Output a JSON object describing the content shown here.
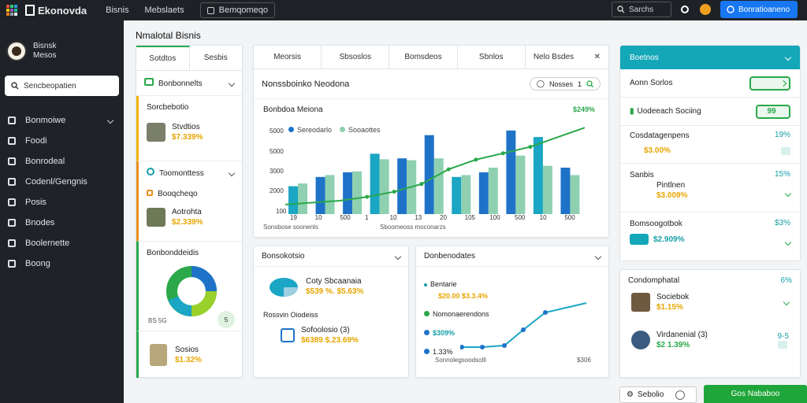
{
  "topbar": {
    "brand": "Ekonovda",
    "nav": [
      "Bisnis",
      "Mebslaets",
      "Bemqomeqo"
    ],
    "search_label": "Sarchs",
    "action_button": "Bonratioaneno"
  },
  "sidebar": {
    "profile_name": "Bisnsk",
    "profile_sub": "Mesos",
    "search_placeholder": "Sencbeopatien",
    "items": [
      "Bonmoiwe",
      "Foodi",
      "Bonrodeal",
      "Codenl/Gengnis",
      "Posis",
      "Bnodes",
      "Boolernette",
      "Boong"
    ]
  },
  "page_title": "Nmalotal Bisnis",
  "left_panel": {
    "tabs": [
      "Sotdtos",
      "Sesbis"
    ],
    "group1": {
      "title": "Bonbonnelts",
      "items": [
        {
          "name": "Sorcbebotio",
          "label": ""
        },
        {
          "name": "Stvdtios",
          "value": "$7.339%"
        }
      ]
    },
    "group2": {
      "title": "Toomonttess",
      "items": [
        {
          "name": "Booqcheqo",
          "value": ""
        },
        {
          "name": "Aotrohta",
          "value": "$2.339%"
        }
      ]
    },
    "group3": {
      "title": "Bonbonddeidis",
      "donut_label": "BS 5G",
      "badge": "5"
    },
    "group4": {
      "name": "Sosios",
      "value": "$1.32%"
    }
  },
  "main_tabs": [
    "Meorsis",
    "Sbsoslos",
    "Bomsdeos",
    "Sbnlos",
    "Nelo Bsdes"
  ],
  "main_chart": {
    "title": "Nonssboinko Neodona",
    "filter_label": "Nosses",
    "filter_value": "1",
    "chart_title": "Bonbdoa Meiona",
    "legend": [
      "Sereodarlo",
      "Sooaottes"
    ],
    "trend_label": "$249%",
    "footer_left": "Sonsbose soonenls",
    "footer_right": "Sboomeoss moconarzs",
    "y_ticks": [
      "5000",
      "5000",
      "3000",
      "2000",
      "100"
    ],
    "x_ticks": [
      "19",
      "10",
      "500",
      "1",
      "10",
      "13",
      "20",
      "105",
      "100",
      "500",
      "10",
      "500"
    ]
  },
  "chart_data": {
    "type": "bar",
    "series": [
      {
        "name": "Sereodarlo",
        "values": [
          3,
          4,
          4.5,
          6.5,
          6,
          8.5,
          4,
          4.5,
          9,
          8.3,
          5
        ]
      },
      {
        "name": "Sooaottes",
        "values": [
          3.3,
          4.2,
          4.6,
          5.9,
          5.8,
          6,
          4.2,
          5,
          6.3,
          5.2,
          4.2
        ]
      }
    ],
    "trend": [
      1,
      1.3,
      1.6,
      2.2,
      3,
      4.2,
      6.5,
      8,
      9,
      10,
      11.5,
      13
    ]
  },
  "card_bottom1": {
    "title": "Bonsokotsio",
    "item1_name": "Coty Sbcaanaia",
    "item1_value": "$539 %. $5.63%",
    "section_label": "Rossvin Oiodeiss",
    "item2_name": "Sofoolosio (3)",
    "item2_value": "$6389 $.23.69%"
  },
  "card_bottom2": {
    "title": "Donbenodates",
    "rows": [
      {
        "label": "Bentarie",
        "value": "$20.00 $3.3.4%"
      },
      {
        "label": "Nomonaerendons",
        "value": ""
      },
      {
        "label": "$309%",
        "value": ""
      },
      {
        "label": "1.33%",
        "value": ""
      }
    ],
    "footer_left": "Sonnolegsoodsolli",
    "footer_right": "$306"
  },
  "right_panel": {
    "header": "Boetnos",
    "rows": [
      {
        "label": "Aonn Sorlos",
        "control": "toggle"
      },
      {
        "label": "Uodeeach Sociing",
        "control": "99"
      },
      {
        "label": "Cosdatagenpens",
        "pct": "19%",
        "value": "$3.00%"
      },
      {
        "label": "Sanbis",
        "sub": "Pintlnen",
        "pct": "15%",
        "value": "$3.009%"
      },
      {
        "label": "Bomsoogotbok",
        "pct": "$3%",
        "value": "$2.909%"
      }
    ]
  },
  "right_panel2": {
    "title": "Condomphatal",
    "pct": "6%",
    "items": [
      {
        "name": "Sociebok",
        "value": "$1.15%",
        "pct": ""
      },
      {
        "name": "Virdanenial (3)",
        "value": "$2 1.39%",
        "pct": "9-5"
      }
    ]
  },
  "bottom_buttons": {
    "secondary": "Sebolio",
    "primary": "Gos Nababoo"
  }
}
